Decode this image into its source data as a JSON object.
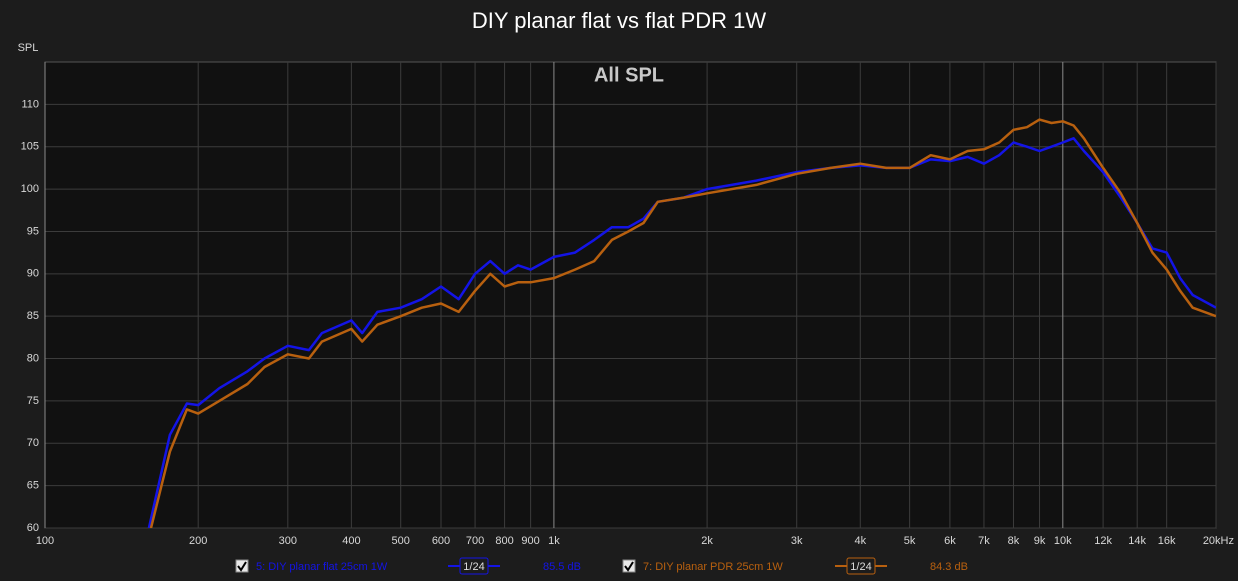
{
  "chart_data": {
    "type": "line",
    "title": "DIY planar flat vs flat PDR 1W",
    "annotation": "All SPL",
    "y_label": "SPL",
    "log_x": true,
    "grid": true,
    "xlim": [
      100,
      20000
    ],
    "ylim": [
      60,
      115
    ],
    "yticks": [
      60,
      65,
      70,
      75,
      80,
      85,
      90,
      95,
      100,
      105,
      110
    ],
    "xticks": [
      100,
      200,
      300,
      400,
      500,
      600,
      700,
      800,
      900,
      {
        "value": 1000,
        "label": "1k"
      },
      {
        "value": 2000,
        "label": "2k"
      },
      {
        "value": 3000,
        "label": "3k"
      },
      {
        "value": 4000,
        "label": "4k"
      },
      {
        "value": 5000,
        "label": "5k"
      },
      {
        "value": 6000,
        "label": "6k"
      },
      {
        "value": 7000,
        "label": "7k"
      },
      {
        "value": 8000,
        "label": "8k"
      },
      {
        "value": 9000,
        "label": "9k"
      },
      {
        "value": 10000,
        "label": "10k"
      },
      {
        "value": 12000,
        "label": "12k"
      },
      {
        "value": 14000,
        "label": "14k"
      },
      {
        "value": 16000,
        "label": "16k"
      },
      {
        "value": 20000,
        "label": "20kHz"
      }
    ],
    "x": [
      160,
      176,
      190,
      200,
      220,
      250,
      270,
      300,
      330,
      350,
      400,
      420,
      450,
      500,
      550,
      600,
      650,
      700,
      750,
      800,
      850,
      900,
      1000,
      1100,
      1200,
      1300,
      1400,
      1500,
      1600,
      1800,
      2000,
      2500,
      3000,
      3500,
      4000,
      4500,
      5000,
      5500,
      6000,
      6500,
      7000,
      7500,
      8000,
      8500,
      9000,
      9500,
      10000,
      10500,
      11000,
      12000,
      13000,
      14000,
      15000,
      16000,
      17000,
      18000,
      20000
    ],
    "series": [
      {
        "name": "5: DIY planar flat 25cm 1W",
        "color": "#1414e6",
        "smoothing": "1/24",
        "level": "85.5 dB",
        "values": [
          60,
          71,
          74.7,
          74.5,
          76.5,
          78.5,
          80,
          81.5,
          81,
          83,
          84.5,
          83,
          85.5,
          86,
          87,
          88.5,
          87,
          90,
          91.5,
          90,
          91,
          90.5,
          92,
          92.5,
          94,
          95.5,
          95.5,
          96.5,
          98.5,
          99,
          100,
          101,
          102,
          102.5,
          102.8,
          102.5,
          102.5,
          103.5,
          103.3,
          103.8,
          103,
          104,
          105.5,
          105,
          104.5,
          105,
          105.5,
          106,
          104.5,
          102,
          99,
          96,
          93,
          92.5,
          89.5,
          87.5,
          86
        ]
      },
      {
        "name": "7: DIY planar PDR 25cm 1W",
        "color": "#b8600f",
        "smoothing": "1/24",
        "level": "84.3 dB",
        "values": [
          59,
          69,
          74,
          73.5,
          75,
          77,
          79,
          80.5,
          80,
          82,
          83.5,
          82,
          84,
          85,
          86,
          86.5,
          85.5,
          88,
          90,
          88.5,
          89,
          89,
          89.5,
          90.5,
          91.5,
          94,
          95,
          96,
          98.5,
          99,
          99.5,
          100.5,
          101.8,
          102.5,
          103,
          102.5,
          102.5,
          104,
          103.5,
          104.5,
          104.7,
          105.5,
          107,
          107.3,
          108.2,
          107.8,
          108,
          107.5,
          106,
          102.5,
          99.5,
          96,
          92.5,
          90.5,
          88,
          86,
          85
        ]
      }
    ]
  }
}
